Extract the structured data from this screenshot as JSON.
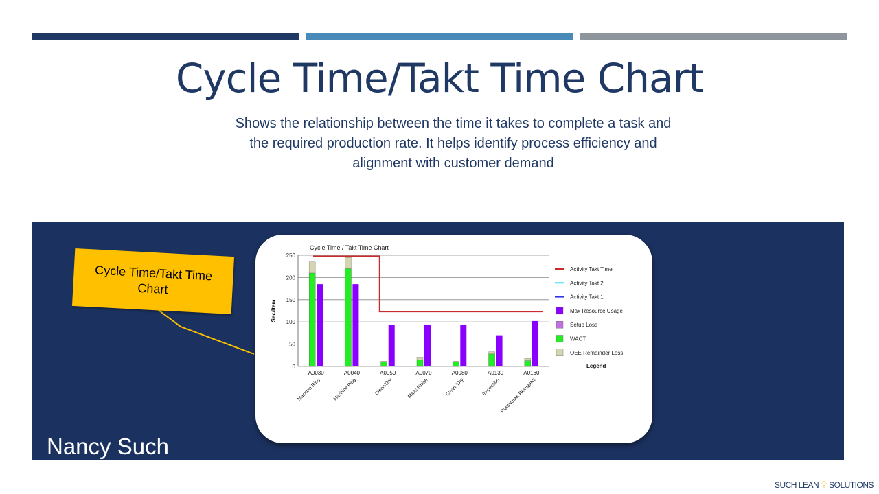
{
  "slide": {
    "title": "Cycle Time/Takt Time Chart",
    "subtitle": "Shows the relationship between the time it takes to complete a task and the required production rate. It helps identify process efficiency and alignment with customer demand",
    "presenter": "Nancy Such",
    "callout": "Cycle Time/Takt Time Chart",
    "footer_left": "SUCH LEAN",
    "footer_right": "SOLUTIONS",
    "footer_icon": "lightbulb-icon"
  },
  "colors": {
    "navy": "#1f3864",
    "panel": "#1b3260",
    "callout": "#ffc000",
    "takt": "#cc2a2a",
    "takt2": "#33ddee",
    "takt1": "#3333ee",
    "max_resource": "#8a00ff",
    "setup": "#c070e0",
    "wact": "#22ee22",
    "oee": "#d4d6b0"
  },
  "chart_data": {
    "type": "bar",
    "title": "Cycle Time / Takt Time Chart",
    "ylabel": "Sec/Item",
    "ylim": [
      0,
      250
    ],
    "yticks": [
      0,
      50,
      100,
      150,
      200,
      250
    ],
    "grid": true,
    "codes": [
      "A0030",
      "A0040",
      "A0050",
      "A0070",
      "A0080",
      "A0130",
      "A0160"
    ],
    "categories": [
      "Machine Ring",
      "Machine Plug",
      "Clean/Dry",
      "Mass Finish",
      "Clean /Dry",
      "Inspection",
      "Passivate& Reinspect"
    ],
    "series": [
      {
        "name": "WACT",
        "values": [
          210,
          220,
          10,
          15,
          10,
          28,
          13
        ]
      },
      {
        "name": "OEE Remainder Loss",
        "values": [
          25,
          25,
          2,
          5,
          2,
          5,
          5
        ]
      },
      {
        "name": "Max Resource Usage",
        "values": [
          185,
          185,
          93,
          93,
          93,
          70,
          102
        ]
      },
      {
        "name": "Activity Takt Time",
        "values": [
          248,
          248,
          123,
          123,
          123,
          123,
          123
        ]
      }
    ],
    "legend": {
      "title": "Legend",
      "position": "right",
      "items": [
        {
          "name": "Activity Takt Time",
          "kind": "line",
          "color": "#cc2a2a"
        },
        {
          "name": "Activity Takt 2",
          "kind": "line",
          "color": "#33ddee"
        },
        {
          "name": "Activity Takt 1",
          "kind": "line",
          "color": "#3333ee"
        },
        {
          "name": "Max Resource Usage",
          "kind": "box",
          "color": "#8a00ff"
        },
        {
          "name": "Setup Loss",
          "kind": "box",
          "color": "#c070e0"
        },
        {
          "name": "WACT",
          "kind": "box",
          "color": "#22ee22"
        },
        {
          "name": "OEE Remainder Loss",
          "kind": "box",
          "color": "#d4d6b0"
        }
      ]
    }
  }
}
